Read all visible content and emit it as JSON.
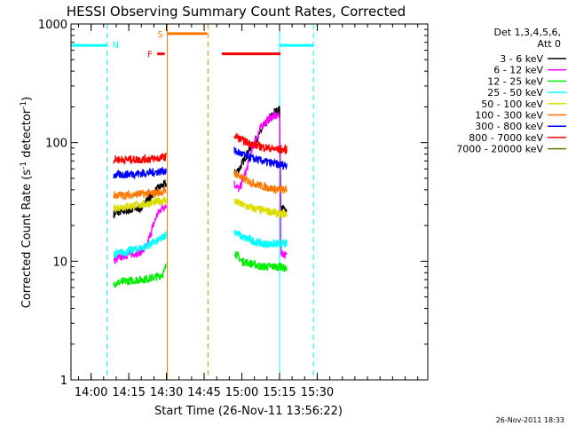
{
  "chart_data": {
    "type": "line",
    "title": "HESSI Observing Summary Count Rates, Corrected",
    "xlabel": "Start Time (26-Nov-11 13:56:22)",
    "ylabel_parts": [
      "Corrected Count Rate (s",
      "-1",
      " detector",
      "-1",
      ")"
    ],
    "yscale": "log",
    "ylim": [
      1,
      1000
    ],
    "xlim_min": [
      -4,
      138
    ],
    "xticks": [
      {
        "t": 4,
        "label": "14:00"
      },
      {
        "t": 19,
        "label": "14:15"
      },
      {
        "t": 34,
        "label": "14:30"
      },
      {
        "t": 49,
        "label": "14:45"
      },
      {
        "t": 64,
        "label": "15:00"
      },
      {
        "t": 79,
        "label": "15:15"
      },
      {
        "t": 94,
        "label": "15:30"
      }
    ],
    "yticks": [
      {
        "v": 1,
        "label": "1"
      },
      {
        "v": 10,
        "label": "10"
      },
      {
        "v": 100,
        "label": "100"
      },
      {
        "v": 1000,
        "label": "1000"
      }
    ],
    "legend": {
      "header": [
        "Det 1,3,4,5,6,",
        "Att 0"
      ],
      "position": "right"
    },
    "series": [
      {
        "name": "3 - 6 keV",
        "color": "#000000",
        "seg1": [
          [
            13,
            25
          ],
          [
            15,
            26
          ],
          [
            20,
            27
          ],
          [
            24,
            28
          ],
          [
            26,
            33
          ],
          [
            28,
            35
          ],
          [
            30,
            40
          ],
          [
            32,
            43
          ],
          [
            34,
            45
          ]
        ],
        "seg2": [
          [
            61,
            55
          ],
          [
            63,
            60
          ],
          [
            66,
            80
          ],
          [
            70,
            110
          ],
          [
            74,
            150
          ],
          [
            77,
            180
          ],
          [
            79,
            190
          ],
          [
            79.5,
            28
          ],
          [
            82,
            27
          ]
        ]
      },
      {
        "name": "6 - 12 keV",
        "color": "#ff00ff",
        "seg1": [
          [
            13,
            10
          ],
          [
            16,
            11
          ],
          [
            20,
            11.5
          ],
          [
            24,
            12
          ],
          [
            26,
            13
          ],
          [
            28,
            18
          ],
          [
            30,
            24
          ],
          [
            32,
            28
          ],
          [
            34,
            30
          ]
        ],
        "seg2": [
          [
            61,
            45
          ],
          [
            63,
            40
          ],
          [
            66,
            60
          ],
          [
            69,
            100
          ],
          [
            72,
            140
          ],
          [
            76,
            165
          ],
          [
            79,
            170
          ],
          [
            79.5,
            12
          ],
          [
            82,
            11
          ]
        ]
      },
      {
        "name": "12 - 25 keV",
        "color": "#00ee00",
        "seg1": [
          [
            13,
            6.5
          ],
          [
            18,
            6.8
          ],
          [
            24,
            7
          ],
          [
            28,
            7.2
          ],
          [
            31,
            7.5
          ],
          [
            33,
            8
          ],
          [
            34,
            9.5
          ]
        ],
        "seg2": [
          [
            61,
            12
          ],
          [
            64,
            10
          ],
          [
            68,
            9.5
          ],
          [
            72,
            9
          ],
          [
            76,
            9
          ],
          [
            79,
            9
          ],
          [
            79.5,
            9
          ],
          [
            82,
            8.5
          ]
        ]
      },
      {
        "name": "25 - 50 keV",
        "color": "#00ffff",
        "seg1": [
          [
            13,
            11.5
          ],
          [
            18,
            12
          ],
          [
            24,
            13
          ],
          [
            28,
            14
          ],
          [
            31,
            15
          ],
          [
            34,
            17
          ]
        ],
        "seg2": [
          [
            61,
            18
          ],
          [
            64,
            16
          ],
          [
            68,
            15
          ],
          [
            72,
            14
          ],
          [
            76,
            14
          ],
          [
            79,
            14
          ],
          [
            79.5,
            14
          ],
          [
            82,
            14
          ]
        ]
      },
      {
        "name": "50 - 100 keV",
        "color": "#dddd00",
        "seg1": [
          [
            13,
            28
          ],
          [
            18,
            29
          ],
          [
            24,
            30
          ],
          [
            28,
            31
          ],
          [
            31,
            32
          ],
          [
            34,
            33
          ]
        ],
        "seg2": [
          [
            61,
            32
          ],
          [
            64,
            30
          ],
          [
            68,
            28
          ],
          [
            72,
            27
          ],
          [
            76,
            26
          ],
          [
            79,
            25
          ],
          [
            79.5,
            25
          ],
          [
            82,
            25
          ]
        ]
      },
      {
        "name": "100 - 300 keV",
        "color": "#ff7700",
        "seg1": [
          [
            13,
            36
          ],
          [
            18,
            36
          ],
          [
            24,
            37
          ],
          [
            28,
            37
          ],
          [
            31,
            38
          ],
          [
            34,
            39
          ]
        ],
        "seg2": [
          [
            61,
            56
          ],
          [
            64,
            50
          ],
          [
            68,
            46
          ],
          [
            72,
            43
          ],
          [
            76,
            41
          ],
          [
            79,
            40
          ],
          [
            79.5,
            40
          ],
          [
            82,
            40
          ]
        ]
      },
      {
        "name": "300 - 800 keV",
        "color": "#0000ff",
        "seg1": [
          [
            13,
            53
          ],
          [
            18,
            54
          ],
          [
            24,
            55
          ],
          [
            28,
            56
          ],
          [
            31,
            57
          ],
          [
            34,
            58
          ]
        ],
        "seg2": [
          [
            61,
            85
          ],
          [
            64,
            80
          ],
          [
            68,
            74
          ],
          [
            72,
            70
          ],
          [
            76,
            67
          ],
          [
            79,
            65
          ],
          [
            79.5,
            65
          ],
          [
            82,
            65
          ]
        ]
      },
      {
        "name": "800 - 7000 keV",
        "color": "#ff0000",
        "seg1": [
          [
            13,
            72
          ],
          [
            18,
            72
          ],
          [
            24,
            72
          ],
          [
            28,
            73
          ],
          [
            31,
            74
          ],
          [
            34,
            76
          ]
        ],
        "seg2": [
          [
            61,
            115
          ],
          [
            64,
            105
          ],
          [
            68,
            97
          ],
          [
            72,
            92
          ],
          [
            76,
            89
          ],
          [
            79,
            87
          ],
          [
            79.5,
            87
          ],
          [
            82,
            87
          ]
        ]
      },
      {
        "name": "7000 - 20000 keV",
        "color": "#667700",
        "seg1": [],
        "seg2": []
      }
    ],
    "flags": [
      {
        "label": "N",
        "color": "#00ffff",
        "level": 660,
        "spans": [
          [
            -4,
            10.3
          ],
          [
            79,
            92.5
          ]
        ],
        "dashed_at": [
          10.3,
          92.5
        ],
        "solid_at": [
          79
        ]
      },
      {
        "label": "S",
        "color": "#ff7700",
        "level": 830,
        "spans": [
          [
            34.3,
            50.2
          ]
        ],
        "solid_at": [
          34.3
        ],
        "dashed_at": [
          50.5
        ]
      },
      {
        "label": "F",
        "color": "#ff0000",
        "level": 560,
        "spans": [
          [
            30.3,
            33.3
          ],
          [
            56,
            79.4
          ]
        ]
      }
    ]
  },
  "footer": {
    "timestamp": "26-Nov-2011 18:33"
  }
}
